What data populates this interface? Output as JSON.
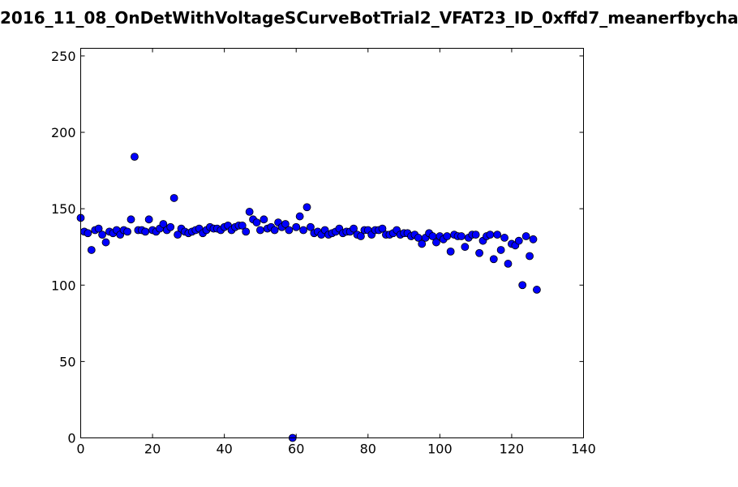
{
  "chart_data": {
    "type": "scatter",
    "title": "2016_11_08_OnDetWithVoltageSCurveBotTrial2_VFAT23_ID_0xffd7_meanerfbycha",
    "xlabel": "",
    "ylabel": "",
    "xlim": [
      0,
      140
    ],
    "ylim": [
      0,
      255
    ],
    "x_ticks": [
      0,
      20,
      40,
      60,
      80,
      100,
      120,
      140
    ],
    "y_ticks": [
      0,
      50,
      100,
      150,
      200,
      250
    ],
    "grid": false,
    "marker_color": "#0000ff",
    "x": [
      0,
      1,
      2,
      3,
      4,
      5,
      6,
      7,
      8,
      9,
      10,
      11,
      12,
      13,
      14,
      15,
      16,
      17,
      18,
      19,
      20,
      21,
      22,
      23,
      24,
      25,
      26,
      27,
      28,
      29,
      30,
      31,
      32,
      33,
      34,
      35,
      36,
      37,
      38,
      39,
      40,
      41,
      42,
      43,
      44,
      45,
      46,
      47,
      48,
      49,
      50,
      51,
      52,
      53,
      54,
      55,
      56,
      57,
      58,
      59,
      60,
      61,
      62,
      63,
      64,
      65,
      66,
      67,
      68,
      69,
      70,
      71,
      72,
      73,
      74,
      75,
      76,
      77,
      78,
      79,
      80,
      81,
      82,
      83,
      84,
      85,
      86,
      87,
      88,
      89,
      90,
      91,
      92,
      93,
      94,
      95,
      96,
      97,
      98,
      99,
      100,
      101,
      102,
      103,
      104,
      105,
      106,
      107,
      108,
      109,
      110,
      111,
      112,
      113,
      114,
      115,
      116,
      117,
      118,
      119,
      120,
      121,
      122,
      123,
      124,
      125,
      126,
      127
    ],
    "y": [
      144,
      135,
      134,
      123,
      136,
      137,
      133,
      128,
      135,
      134,
      136,
      133,
      136,
      135,
      143,
      184,
      136,
      136,
      135,
      143,
      136,
      135,
      137,
      140,
      136,
      138,
      157,
      133,
      137,
      135,
      134,
      135,
      136,
      137,
      134,
      136,
      138,
      137,
      137,
      136,
      138,
      139,
      136,
      138,
      139,
      139,
      135,
      148,
      143,
      141,
      136,
      143,
      137,
      138,
      136,
      141,
      138,
      140,
      136,
      0,
      138,
      145,
      136,
      151,
      138,
      134,
      135,
      133,
      136,
      133,
      134,
      135,
      137,
      134,
      135,
      135,
      137,
      133,
      132,
      136,
      136,
      133,
      136,
      136,
      137,
      133,
      133,
      134,
      136,
      133,
      134,
      134,
      132,
      133,
      131,
      127,
      131,
      134,
      132,
      128,
      132,
      130,
      132,
      122,
      133,
      132,
      132,
      125,
      131,
      133,
      133,
      121,
      129,
      132,
      133,
      117,
      133,
      123,
      131,
      114,
      127,
      126,
      129,
      100,
      132,
      119,
      130,
      97
    ]
  }
}
